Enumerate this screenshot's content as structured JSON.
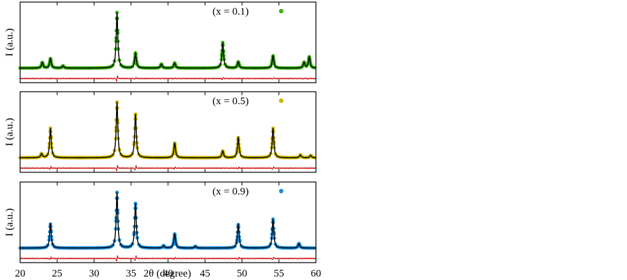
{
  "chart_data": {
    "type": "line",
    "xlabel": "2θ (degree)",
    "xlim": [
      20,
      60
    ],
    "x_ticks": [
      20,
      25,
      30,
      35,
      40,
      45,
      50,
      55,
      60
    ],
    "fit_color": "#000000",
    "difference_color": "#cc0000",
    "panels": [
      {
        "legend": "(x = 0.1)",
        "color": "#3ab013",
        "ylabel": "I (a.u.)",
        "peaks": [
          {
            "x": 23.0,
            "h": 0.1
          },
          {
            "x": 24.1,
            "h": 0.17
          },
          {
            "x": 25.8,
            "h": 0.04
          },
          {
            "x": 33.1,
            "h": 1.0
          },
          {
            "x": 35.6,
            "h": 0.27
          },
          {
            "x": 39.1,
            "h": 0.07
          },
          {
            "x": 40.9,
            "h": 0.09
          },
          {
            "x": 47.4,
            "h": 0.46
          },
          {
            "x": 49.5,
            "h": 0.11
          },
          {
            "x": 54.2,
            "h": 0.22
          },
          {
            "x": 58.4,
            "h": 0.1
          },
          {
            "x": 59.1,
            "h": 0.2
          }
        ]
      },
      {
        "legend": "(x = 0.5)",
        "color": "#c8b400",
        "ylabel": "I (a.u.)",
        "peaks": [
          {
            "x": 22.9,
            "h": 0.07
          },
          {
            "x": 24.1,
            "h": 0.53
          },
          {
            "x": 33.1,
            "h": 1.0
          },
          {
            "x": 35.6,
            "h": 0.78
          },
          {
            "x": 40.9,
            "h": 0.26
          },
          {
            "x": 47.4,
            "h": 0.12
          },
          {
            "x": 49.5,
            "h": 0.36
          },
          {
            "x": 54.2,
            "h": 0.53
          },
          {
            "x": 57.9,
            "h": 0.05
          },
          {
            "x": 59.3,
            "h": 0.04
          }
        ]
      },
      {
        "legend": "(x = 0.9)",
        "color": "#1e8fdc",
        "ylabel": "I (a.u.)",
        "peaks": [
          {
            "x": 24.1,
            "h": 0.43
          },
          {
            "x": 33.1,
            "h": 1.0
          },
          {
            "x": 35.6,
            "h": 0.8
          },
          {
            "x": 39.4,
            "h": 0.04
          },
          {
            "x": 40.9,
            "h": 0.25
          },
          {
            "x": 43.7,
            "h": 0.03
          },
          {
            "x": 49.5,
            "h": 0.42
          },
          {
            "x": 54.2,
            "h": 0.52
          },
          {
            "x": 57.7,
            "h": 0.08
          }
        ]
      }
    ]
  }
}
